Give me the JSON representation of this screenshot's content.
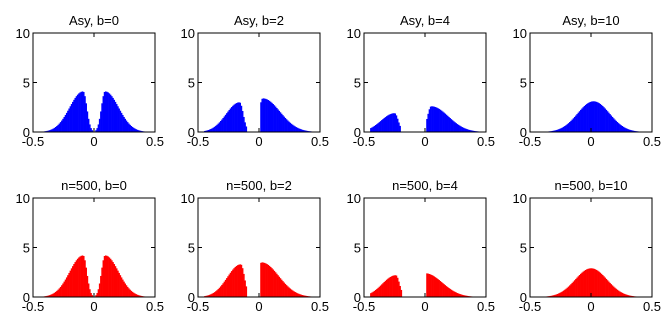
{
  "chart_data": [
    {
      "type": "histogram",
      "title": "Asy,  b=0",
      "color": "#0000ff",
      "xlim": [
        -0.5,
        0.5
      ],
      "ylim": [
        0,
        10
      ],
      "xticks": [
        "-0.5",
        "0",
        "0.5"
      ],
      "yticks": [
        "0",
        "5",
        "10"
      ],
      "bin_width": 0.01,
      "density": {
        "peaks": [
          [
            -0.09,
            4.1
          ],
          [
            0.09,
            4.1
          ]
        ],
        "gap": [
          [
            0.0,
            0.0
          ]
        ],
        "support": [
          -0.45,
          0.45
        ]
      }
    },
    {
      "type": "histogram",
      "title": "Asy,  b=2",
      "color": "#0000ff",
      "xlim": [
        -0.5,
        0.5
      ],
      "ylim": [
        0,
        10
      ],
      "xticks": [
        "-0.5",
        "0",
        "0.5"
      ],
      "yticks": [
        "0",
        "5",
        "10"
      ],
      "bin_width": 0.01,
      "density": {
        "peaks": [
          [
            -0.16,
            3.0
          ],
          [
            0.03,
            3.4
          ]
        ],
        "gap": [
          [
            -0.09,
            0.0
          ]
        ],
        "support": [
          -0.45,
          0.45
        ]
      }
    },
    {
      "type": "histogram",
      "title": "Asy,  b=4",
      "color": "#0000ff",
      "xlim": [
        -0.5,
        0.5
      ],
      "ylim": [
        0,
        10
      ],
      "xticks": [
        "-0.5",
        "0",
        "0.5"
      ],
      "yticks": [
        "0",
        "5",
        "10"
      ],
      "bin_width": 0.01,
      "density": {
        "peaks": [
          [
            -0.25,
            1.9
          ],
          [
            0.05,
            2.6
          ]
        ],
        "gap": [
          [
            -0.19,
            0.0
          ]
        ],
        "support": [
          -0.45,
          0.45
        ]
      }
    },
    {
      "type": "histogram",
      "title": "Asy,  b=10",
      "color": "#0000ff",
      "xlim": [
        -0.5,
        0.5
      ],
      "ylim": [
        0,
        10
      ],
      "xticks": [
        "-0.5",
        "0",
        "0.5"
      ],
      "yticks": [
        "0",
        "5",
        "10"
      ],
      "bin_width": 0.01,
      "density": {
        "peaks": [
          [
            0.02,
            3.1
          ]
        ],
        "gap": [],
        "support": [
          -0.45,
          0.45
        ]
      }
    },
    {
      "type": "histogram",
      "title": "n=500,  b=0",
      "color": "#ff0000",
      "xlim": [
        -0.5,
        0.5
      ],
      "ylim": [
        0,
        10
      ],
      "xticks": [
        "-0.5",
        "0",
        "0.5"
      ],
      "yticks": [
        "0",
        "5",
        "10"
      ],
      "bin_width": 0.01,
      "density": {
        "peaks": [
          [
            -0.09,
            4.2
          ],
          [
            0.09,
            4.2
          ]
        ],
        "gap": [
          [
            0.0,
            0.0
          ]
        ],
        "support": [
          -0.45,
          0.45
        ]
      }
    },
    {
      "type": "histogram",
      "title": "n=500,  b=2",
      "color": "#ff0000",
      "xlim": [
        -0.5,
        0.5
      ],
      "ylim": [
        0,
        10
      ],
      "xticks": [
        "-0.5",
        "0",
        "0.5"
      ],
      "yticks": [
        "0",
        "5",
        "10"
      ],
      "bin_width": 0.01,
      "density": {
        "peaks": [
          [
            -0.15,
            3.3
          ],
          [
            0.02,
            3.5
          ]
        ],
        "gap": [
          [
            -0.09,
            0.0
          ]
        ],
        "support": [
          -0.45,
          0.45
        ]
      }
    },
    {
      "type": "histogram",
      "title": "n=500,  b=4",
      "color": "#ff0000",
      "xlim": [
        -0.5,
        0.5
      ],
      "ylim": [
        0,
        10
      ],
      "xticks": [
        "-0.5",
        "0",
        "0.5"
      ],
      "yticks": [
        "0",
        "5",
        "10"
      ],
      "bin_width": 0.01,
      "density": {
        "peaks": [
          [
            -0.24,
            2.2
          ],
          [
            0.0,
            2.4
          ]
        ],
        "gap": [
          [
            -0.18,
            0.0
          ]
        ],
        "support": [
          -0.45,
          0.45
        ]
      }
    },
    {
      "type": "histogram",
      "title": "n=500,  b=10",
      "color": "#ff0000",
      "xlim": [
        -0.5,
        0.5
      ],
      "ylim": [
        0,
        10
      ],
      "xticks": [
        "-0.5",
        "0",
        "0.5"
      ],
      "yticks": [
        "0",
        "5",
        "10"
      ],
      "bin_width": 0.01,
      "density": {
        "peaks": [
          [
            0.0,
            2.9
          ]
        ],
        "gap": [],
        "support": [
          -0.45,
          0.45
        ]
      }
    }
  ]
}
